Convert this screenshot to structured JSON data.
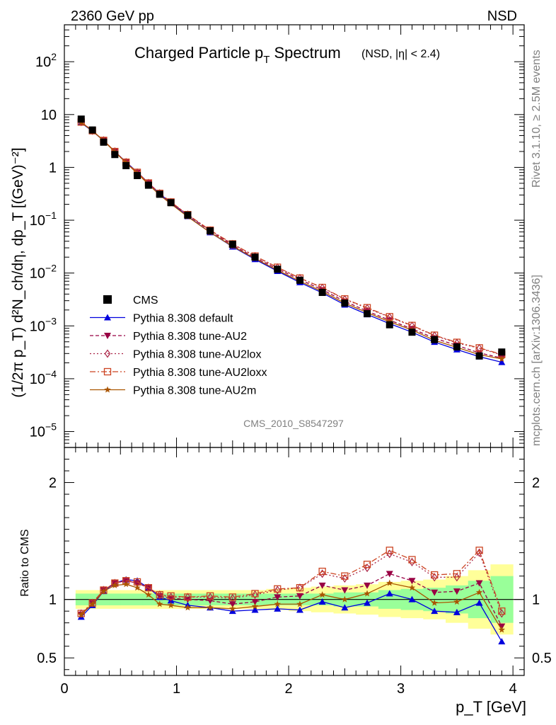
{
  "header": {
    "left": "2360 GeV pp",
    "right": "NSD"
  },
  "side_text": {
    "rivet": "Rivet 3.1.10, ≥ 2.5M events",
    "mcplots": "mcplots.cern.ch [arXiv:1306.3436]"
  },
  "chart_data": {
    "type": "line",
    "title_main": "Charged Particle p",
    "title_main_sub": "T",
    "title_main_tail": " Spectrum",
    "title_extra": "(NSD, |η| < 2.4)",
    "watermark": "CMS_2010_S8547297",
    "ylabel_main": "(1/2π p_T) d²N_ch/dη, dp_T [(GeV)⁻²]",
    "ylabel_ratio": "Ratio to CMS",
    "xlabel": "p_T [GeV]",
    "xlim": [
      0,
      4.1
    ],
    "ylim_main": [
      5e-06,
      500
    ],
    "ylim_ratio": [
      0.35,
      2.3
    ],
    "log_y_main": true,
    "x_ticks": [
      "0",
      "1",
      "2",
      "3",
      "4"
    ],
    "y_ticks_main": [
      "10^{-5}",
      "10^{-4}",
      "10^{-3}",
      "10^{-2}",
      "10^{-1}",
      "1",
      "10",
      "10^{2}"
    ],
    "y_ticks_ratio": [
      "0.5",
      "1",
      "2"
    ],
    "legend_position": "lower-left",
    "x": [
      0.15,
      0.25,
      0.35,
      0.45,
      0.55,
      0.65,
      0.75,
      0.85,
      0.95,
      1.1,
      1.3,
      1.5,
      1.7,
      1.9,
      2.1,
      2.3,
      2.5,
      2.7,
      2.9,
      3.1,
      3.3,
      3.5,
      3.7,
      3.9
    ],
    "data": {
      "name": "CMS",
      "values": [
        8.2,
        5.1,
        3.0,
        1.75,
        1.08,
        0.7,
        0.46,
        0.31,
        0.215,
        0.125,
        0.063,
        0.035,
        0.02,
        0.0118,
        0.0073,
        0.0043,
        0.0027,
        0.0017,
        0.00105,
        0.00076,
        0.00055,
        0.0004,
        0.00027,
        0.00032
      ],
      "band_inner": [
        0.05,
        0.05,
        0.05,
        0.05,
        0.05,
        0.05,
        0.05,
        0.05,
        0.05,
        0.05,
        0.05,
        0.05,
        0.05,
        0.05,
        0.05,
        0.05,
        0.06,
        0.06,
        0.08,
        0.09,
        0.1,
        0.12,
        0.16,
        0.2
      ],
      "band_outer": [
        0.08,
        0.08,
        0.08,
        0.08,
        0.08,
        0.08,
        0.08,
        0.08,
        0.08,
        0.08,
        0.08,
        0.08,
        0.08,
        0.09,
        0.1,
        0.11,
        0.12,
        0.13,
        0.15,
        0.16,
        0.17,
        0.2,
        0.25,
        0.3
      ]
    },
    "series": [
      {
        "name": "Pythia 8.308 default",
        "color": "#0000dd",
        "marker": "triangle-up",
        "dash": "",
        "ratio": [
          0.85,
          0.95,
          1.07,
          1.14,
          1.17,
          1.16,
          1.1,
          1.02,
          0.99,
          0.95,
          0.93,
          0.9,
          0.91,
          0.92,
          0.91,
          0.98,
          0.93,
          0.97,
          1.05,
          1.0,
          0.9,
          0.89,
          0.97,
          0.64
        ]
      },
      {
        "name": "Pythia 8.308 tune-AU2",
        "color": "#990044",
        "marker": "triangle-down",
        "dash": "5,3",
        "ratio": [
          0.87,
          0.97,
          1.08,
          1.14,
          1.16,
          1.14,
          1.1,
          1.03,
          1.01,
          1.0,
          0.99,
          0.96,
          0.98,
          1.02,
          1.03,
          1.12,
          1.08,
          1.12,
          1.22,
          1.16,
          1.06,
          1.07,
          1.14,
          0.77
        ]
      },
      {
        "name": "Pythia 8.308 tune-AU2lox",
        "color": "#aa2244",
        "marker": "diamond-open",
        "dash": "2,3",
        "ratio": [
          0.88,
          0.97,
          1.08,
          1.14,
          1.16,
          1.14,
          1.1,
          1.04,
          1.02,
          1.02,
          1.02,
          1.01,
          1.04,
          1.08,
          1.1,
          1.22,
          1.18,
          1.27,
          1.39,
          1.32,
          1.19,
          1.19,
          1.4,
          0.88
        ]
      },
      {
        "name": "Pythia 8.308 tune-AU2loxx",
        "color": "#cc4422",
        "marker": "square-open",
        "dash": "8,3,2,3",
        "ratio": [
          0.88,
          0.97,
          1.08,
          1.14,
          1.16,
          1.15,
          1.1,
          1.04,
          1.03,
          1.02,
          1.03,
          1.02,
          1.05,
          1.09,
          1.1,
          1.24,
          1.2,
          1.3,
          1.42,
          1.34,
          1.21,
          1.22,
          1.42,
          0.9
        ]
      },
      {
        "name": "Pythia 8.308 tune-AU2m",
        "color": "#aa5500",
        "marker": "star",
        "dash": "",
        "ratio": [
          0.87,
          0.96,
          1.07,
          1.12,
          1.13,
          1.1,
          1.04,
          0.96,
          0.95,
          0.93,
          0.93,
          0.92,
          0.94,
          0.96,
          0.96,
          1.04,
          1.0,
          1.05,
          1.14,
          1.1,
          0.97,
          0.98,
          1.06,
          0.74
        ]
      }
    ]
  }
}
